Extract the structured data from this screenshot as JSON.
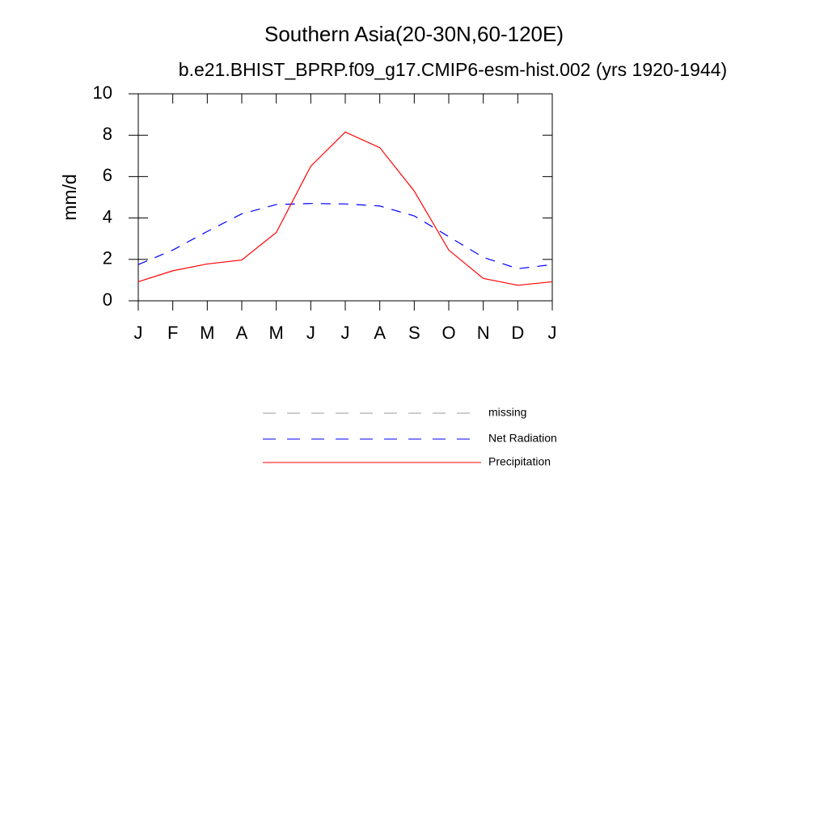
{
  "chart_data": {
    "type": "line",
    "title": "Southern Asia(20-30N,60-120E)",
    "subtitle": "b.e21.BHIST_BPRP.f09_g17.CMIP6-esm-hist.002 (yrs 1920-1944)",
    "y_label": "mm/d",
    "categories": [
      "J",
      "F",
      "M",
      "A",
      "M",
      "J",
      "J",
      "A",
      "S",
      "O",
      "N",
      "D",
      "J"
    ],
    "ylim": [
      0,
      10
    ],
    "yticks": [
      0,
      2,
      4,
      6,
      8,
      10
    ],
    "series": [
      {
        "name": "missing",
        "color": "#999999",
        "dashed": true,
        "values": [
          null,
          null,
          null,
          null,
          null,
          null,
          null,
          null,
          null,
          null,
          null,
          null,
          null
        ]
      },
      {
        "name": "Net Radiation",
        "color": "#0000ff",
        "dashed": true,
        "values": [
          1.75,
          2.45,
          3.35,
          4.2,
          4.65,
          4.7,
          4.68,
          4.58,
          4.1,
          3.1,
          2.1,
          1.55,
          1.75
        ]
      },
      {
        "name": "Precipitation",
        "color": "#ff0000",
        "dashed": false,
        "values": [
          0.92,
          1.45,
          1.78,
          1.97,
          3.3,
          6.5,
          8.15,
          7.4,
          5.3,
          2.45,
          1.08,
          0.75,
          0.92
        ]
      }
    ]
  }
}
